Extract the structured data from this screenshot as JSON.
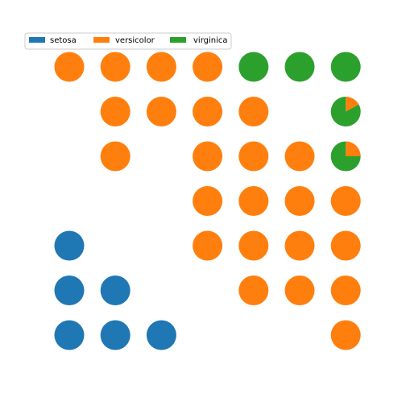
{
  "chart_data": {
    "type": "pie-grid",
    "title": "",
    "xlabel": "",
    "ylabel": "",
    "grid_rows": 7,
    "grid_cols": 7,
    "legend": {
      "placement": "top-left",
      "entries": [
        {
          "name": "setosa",
          "color": "#1f77b4"
        },
        {
          "name": "versicolor",
          "color": "#ff7f0e"
        },
        {
          "name": "virginica",
          "color": "#2ca02c"
        }
      ]
    },
    "cells": [
      {
        "row": 0,
        "col": 0,
        "setosa": 0,
        "versicolor": 1,
        "virginica": 0
      },
      {
        "row": 0,
        "col": 1,
        "setosa": 0,
        "versicolor": 1,
        "virginica": 0
      },
      {
        "row": 0,
        "col": 2,
        "setosa": 0,
        "versicolor": 1,
        "virginica": 0
      },
      {
        "row": 0,
        "col": 3,
        "setosa": 0,
        "versicolor": 1,
        "virginica": 0
      },
      {
        "row": 0,
        "col": 4,
        "setosa": 0,
        "versicolor": 0,
        "virginica": 1
      },
      {
        "row": 0,
        "col": 5,
        "setosa": 0,
        "versicolor": 0,
        "virginica": 1
      },
      {
        "row": 0,
        "col": 6,
        "setosa": 0,
        "versicolor": 0,
        "virginica": 1
      },
      {
        "row": 1,
        "col": 1,
        "setosa": 0,
        "versicolor": 1,
        "virginica": 0
      },
      {
        "row": 1,
        "col": 2,
        "setosa": 0,
        "versicolor": 1,
        "virginica": 0
      },
      {
        "row": 1,
        "col": 3,
        "setosa": 0,
        "versicolor": 1,
        "virginica": 0
      },
      {
        "row": 1,
        "col": 4,
        "setosa": 0,
        "versicolor": 1,
        "virginica": 0
      },
      {
        "row": 1,
        "col": 6,
        "setosa": 0,
        "versicolor": 0.17,
        "virginica": 0.83
      },
      {
        "row": 2,
        "col": 1,
        "setosa": 0,
        "versicolor": 1,
        "virginica": 0
      },
      {
        "row": 2,
        "col": 3,
        "setosa": 0,
        "versicolor": 1,
        "virginica": 0
      },
      {
        "row": 2,
        "col": 4,
        "setosa": 0,
        "versicolor": 1,
        "virginica": 0
      },
      {
        "row": 2,
        "col": 5,
        "setosa": 0,
        "versicolor": 1,
        "virginica": 0
      },
      {
        "row": 2,
        "col": 6,
        "setosa": 0,
        "versicolor": 0.25,
        "virginica": 0.75
      },
      {
        "row": 3,
        "col": 3,
        "setosa": 0,
        "versicolor": 1,
        "virginica": 0
      },
      {
        "row": 3,
        "col": 4,
        "setosa": 0,
        "versicolor": 1,
        "virginica": 0
      },
      {
        "row": 3,
        "col": 5,
        "setosa": 0,
        "versicolor": 1,
        "virginica": 0
      },
      {
        "row": 3,
        "col": 6,
        "setosa": 0,
        "versicolor": 1,
        "virginica": 0
      },
      {
        "row": 4,
        "col": 0,
        "setosa": 1,
        "versicolor": 0,
        "virginica": 0
      },
      {
        "row": 4,
        "col": 3,
        "setosa": 0,
        "versicolor": 1,
        "virginica": 0
      },
      {
        "row": 4,
        "col": 4,
        "setosa": 0,
        "versicolor": 1,
        "virginica": 0
      },
      {
        "row": 4,
        "col": 5,
        "setosa": 0,
        "versicolor": 1,
        "virginica": 0
      },
      {
        "row": 4,
        "col": 6,
        "setosa": 0,
        "versicolor": 1,
        "virginica": 0
      },
      {
        "row": 5,
        "col": 0,
        "setosa": 1,
        "versicolor": 0,
        "virginica": 0
      },
      {
        "row": 5,
        "col": 1,
        "setosa": 1,
        "versicolor": 0,
        "virginica": 0
      },
      {
        "row": 5,
        "col": 4,
        "setosa": 0,
        "versicolor": 1,
        "virginica": 0
      },
      {
        "row": 5,
        "col": 5,
        "setosa": 0,
        "versicolor": 1,
        "virginica": 0
      },
      {
        "row": 5,
        "col": 6,
        "setosa": 0,
        "versicolor": 1,
        "virginica": 0
      },
      {
        "row": 6,
        "col": 0,
        "setosa": 1,
        "versicolor": 0,
        "virginica": 0
      },
      {
        "row": 6,
        "col": 1,
        "setosa": 1,
        "versicolor": 0,
        "virginica": 0
      },
      {
        "row": 6,
        "col": 2,
        "setosa": 1,
        "versicolor": 0,
        "virginica": 0
      },
      {
        "row": 6,
        "col": 6,
        "setosa": 0,
        "versicolor": 1,
        "virginica": 0
      }
    ]
  }
}
